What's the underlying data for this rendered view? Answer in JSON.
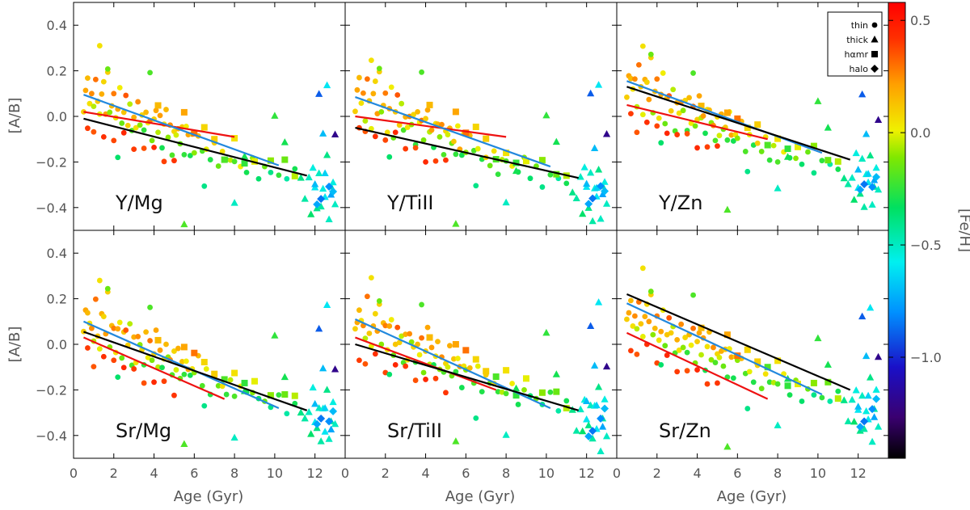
{
  "chart_data": {
    "type": "scatter",
    "x_label": "Age (Gyr)",
    "y_label": "[A/B]",
    "x_range": [
      0,
      13.5
    ],
    "y_range": [
      -0.5,
      0.5
    ],
    "x_ticks": [
      0,
      2,
      4,
      6,
      8,
      10,
      12
    ],
    "y_ticks": [
      -0.4,
      -0.2,
      0.0,
      0.2,
      0.4
    ],
    "x_tick_labels": [
      "0",
      "2",
      "4",
      "6",
      "8",
      "10",
      "12"
    ],
    "y_tick_labels": [
      "−0.4",
      "−0.2",
      "0.0",
      "0.2",
      "0.4"
    ],
    "colorbar": {
      "label": "[Fe/H]",
      "range": [
        -1.45,
        0.58
      ],
      "ticks": [
        0.5,
        0.0,
        -0.5,
        -1.0
      ],
      "tick_labels": [
        "0.5",
        "0.0",
        "−0.5",
        "−1.0"
      ]
    },
    "legend": {
      "position": "top-right of panel 3",
      "items": [
        {
          "label": "thin",
          "marker": "circle"
        },
        {
          "label": "thick",
          "marker": "triangle"
        },
        {
          "label": "hαmr",
          "marker": "square"
        },
        {
          "label": "halo",
          "marker": "diamond"
        }
      ]
    },
    "fit_line_colors": {
      "red": "#ee1111",
      "blue": "#2288dd",
      "black": "#000000"
    },
    "panels": [
      {
        "label": "Y/Mg",
        "fit_lines": [
          {
            "color": "red",
            "x": [
              0.5,
              8.0
            ],
            "y": [
              0.02,
              -0.09
            ]
          },
          {
            "color": "blue",
            "x": [
              0.5,
              10.2
            ],
            "y": [
              0.095,
              -0.215
            ]
          },
          {
            "color": "black",
            "x": [
              0.5,
              11.6
            ],
            "y": [
              -0.01,
              -0.26
            ]
          }
        ],
        "offset": 0.0
      },
      {
        "label": "Y/TiII",
        "fit_lines": [
          {
            "color": "red",
            "x": [
              0.5,
              8.0
            ],
            "y": [
              0.0,
              -0.09
            ]
          },
          {
            "color": "blue",
            "x": [
              0.5,
              10.2
            ],
            "y": [
              0.085,
              -0.22
            ]
          },
          {
            "color": "black",
            "x": [
              0.5,
              11.6
            ],
            "y": [
              -0.05,
              -0.27
            ]
          }
        ],
        "offset": -0.01
      },
      {
        "label": "Y/Zn",
        "fit_lines": [
          {
            "color": "red",
            "x": [
              0.5,
              7.5
            ],
            "y": [
              0.05,
              -0.1
            ]
          },
          {
            "color": "blue",
            "x": [
              0.5,
              10.2
            ],
            "y": [
              0.155,
              -0.16
            ]
          },
          {
            "color": "black",
            "x": [
              0.5,
              11.6
            ],
            "y": [
              0.13,
              -0.19
            ]
          }
        ],
        "offset": 0.04
      },
      {
        "label": "Sr/Mg",
        "fit_lines": [
          {
            "color": "red",
            "x": [
              0.5,
              7.5
            ],
            "y": [
              0.03,
              -0.24
            ]
          },
          {
            "color": "blue",
            "x": [
              0.5,
              10.2
            ],
            "y": [
              0.1,
              -0.28
            ]
          },
          {
            "color": "black",
            "x": [
              0.5,
              11.6
            ],
            "y": [
              0.055,
              -0.29
            ]
          }
        ],
        "offset": 0.0
      },
      {
        "label": "Sr/TiII",
        "fit_lines": [
          {
            "color": "red",
            "x": [
              0.5,
              7.5
            ],
            "y": [
              0.03,
              -0.2
            ]
          },
          {
            "color": "blue",
            "x": [
              0.5,
              10.2
            ],
            "y": [
              0.11,
              -0.28
            ]
          },
          {
            "color": "black",
            "x": [
              0.5,
              11.6
            ],
            "y": [
              0.0,
              -0.29
            ]
          }
        ],
        "offset": 0.0
      },
      {
        "label": "Sr/Zn",
        "fit_lines": [
          {
            "color": "red",
            "x": [
              0.5,
              7.5
            ],
            "y": [
              0.05,
              -0.24
            ]
          },
          {
            "color": "blue",
            "x": [
              0.5,
              10.2
            ],
            "y": [
              0.18,
              -0.22
            ]
          },
          {
            "color": "black",
            "x": [
              0.5,
              11.6
            ],
            "y": [
              0.22,
              -0.2
            ]
          }
        ],
        "offset": 0.03
      }
    ],
    "points": [
      [
        0.5,
        0.05,
        0.1,
        "c"
      ],
      [
        0.6,
        0.12,
        0.2,
        "c"
      ],
      [
        0.7,
        0.15,
        0.15,
        "c"
      ],
      [
        0.8,
        0.08,
        0.05,
        "c"
      ],
      [
        0.9,
        0.1,
        0.25,
        "c"
      ],
      [
        1.0,
        0.02,
        -0.05,
        "c"
      ],
      [
        1.1,
        0.18,
        0.3,
        "c"
      ],
      [
        1.2,
        0.06,
        0.12,
        "c"
      ],
      [
        1.3,
        -0.02,
        0.0,
        "c"
      ],
      [
        1.4,
        0.11,
        0.18,
        "c"
      ],
      [
        1.5,
        0.14,
        0.08,
        "c"
      ],
      [
        1.6,
        0.04,
        0.22,
        "c"
      ],
      [
        1.7,
        0.2,
        0.1,
        "c"
      ],
      [
        1.8,
        0.0,
        -0.1,
        "c"
      ],
      [
        1.9,
        0.07,
        0.15,
        "c"
      ],
      [
        2.0,
        0.1,
        0.28,
        "c"
      ],
      [
        2.1,
        -0.03,
        0.05,
        "c"
      ],
      [
        2.2,
        0.05,
        0.2,
        "c"
      ],
      [
        2.3,
        0.12,
        0.02,
        "c"
      ],
      [
        2.4,
        -0.06,
        -0.15,
        "c"
      ],
      [
        2.5,
        0.03,
        0.12,
        "c"
      ],
      [
        2.6,
        0.08,
        0.35,
        "c"
      ],
      [
        2.7,
        -0.01,
        0.1,
        "c"
      ],
      [
        2.8,
        0.06,
        -0.05,
        "c"
      ],
      [
        2.9,
        -0.08,
        -0.2,
        "c"
      ],
      [
        3.0,
        0.02,
        0.18,
        "c"
      ],
      [
        3.1,
        -0.05,
        0.05,
        "c"
      ],
      [
        3.2,
        0.04,
        0.25,
        "c"
      ],
      [
        3.3,
        -0.02,
        -0.1,
        "c"
      ],
      [
        3.4,
        0.0,
        0.08,
        "c"
      ],
      [
        3.5,
        -0.09,
        -0.25,
        "c"
      ],
      [
        3.6,
        0.03,
        0.15,
        "c"
      ],
      [
        3.7,
        -0.04,
        0.02,
        "c"
      ],
      [
        3.8,
        0.01,
        0.3,
        "c"
      ],
      [
        3.9,
        -0.1,
        -0.12,
        "c"
      ],
      [
        4.0,
        -0.03,
        0.1,
        "c"
      ],
      [
        4.1,
        0.05,
        0.2,
        "c"
      ],
      [
        4.2,
        -0.07,
        -0.05,
        "c"
      ],
      [
        4.3,
        -0.02,
        0.22,
        "c"
      ],
      [
        4.4,
        -0.12,
        -0.3,
        "c"
      ],
      [
        4.5,
        -0.04,
        0.05,
        "c"
      ],
      [
        4.6,
        0.0,
        0.15,
        "c"
      ],
      [
        4.7,
        -0.08,
        -0.1,
        "c"
      ],
      [
        4.8,
        -0.05,
        0.25,
        "c"
      ],
      [
        4.9,
        -0.14,
        -0.2,
        "c"
      ],
      [
        5.0,
        -0.06,
        0.08,
        "c"
      ],
      [
        5.1,
        -0.1,
        -0.02,
        "c"
      ],
      [
        5.2,
        -0.03,
        0.18,
        "c"
      ],
      [
        5.3,
        -0.12,
        -0.15,
        "c"
      ],
      [
        5.4,
        -0.07,
        0.12,
        "c"
      ],
      [
        5.5,
        -0.15,
        -0.25,
        "c"
      ],
      [
        5.6,
        -0.05,
        0.02,
        "c"
      ],
      [
        5.7,
        -0.11,
        0.2,
        "c"
      ],
      [
        5.8,
        -0.16,
        -0.3,
        "c"
      ],
      [
        5.9,
        -0.09,
        0.05,
        "c"
      ],
      [
        6.0,
        -0.13,
        -0.1,
        "c"
      ],
      [
        6.2,
        -0.08,
        0.15,
        "c"
      ],
      [
        6.4,
        -0.17,
        -0.2,
        "c"
      ],
      [
        6.6,
        -0.12,
        0.0,
        "c"
      ],
      [
        6.8,
        -0.19,
        -0.28,
        "c"
      ],
      [
        7.0,
        -0.14,
        0.1,
        "c"
      ],
      [
        7.2,
        -0.2,
        -0.15,
        "c"
      ],
      [
        7.4,
        -0.16,
        0.05,
        "c"
      ],
      [
        7.6,
        -0.22,
        -0.25,
        "c"
      ],
      [
        7.8,
        -0.18,
        -0.05,
        "c"
      ],
      [
        8.0,
        -0.21,
        -0.2,
        "c"
      ],
      [
        8.3,
        -0.19,
        0.02,
        "c"
      ],
      [
        8.6,
        -0.24,
        -0.3,
        "c"
      ],
      [
        8.9,
        -0.2,
        -0.1,
        "c"
      ],
      [
        9.2,
        -0.25,
        -0.35,
        "c"
      ],
      [
        9.5,
        -0.22,
        -0.15,
        "c"
      ],
      [
        9.8,
        -0.27,
        -0.4,
        "c"
      ],
      [
        10.2,
        -0.24,
        -0.25,
        "c"
      ],
      [
        10.6,
        -0.28,
        -0.45,
        "c"
      ],
      [
        11.0,
        -0.26,
        -0.3,
        "c"
      ],
      [
        0.7,
        -0.04,
        0.4,
        "c"
      ],
      [
        1.0,
        -0.08,
        0.35,
        "c"
      ],
      [
        1.5,
        -0.06,
        0.42,
        "c"
      ],
      [
        2.0,
        -0.1,
        0.38,
        "c"
      ],
      [
        2.5,
        -0.09,
        0.45,
        "c"
      ],
      [
        3.0,
        -0.12,
        0.4,
        "c"
      ],
      [
        3.5,
        -0.14,
        0.36,
        "c"
      ],
      [
        4.0,
        -0.16,
        0.44,
        "c"
      ],
      [
        4.5,
        -0.18,
        0.39,
        "c"
      ],
      [
        5.0,
        -0.2,
        0.41,
        "c"
      ],
      [
        1.3,
        0.28,
        0.05,
        "c"
      ],
      [
        1.7,
        0.22,
        -0.15,
        "c"
      ],
      [
        3.8,
        0.18,
        -0.2,
        "c"
      ],
      [
        2.2,
        -0.15,
        -0.35,
        "c"
      ],
      [
        6.5,
        -0.3,
        -0.4,
        "c"
      ],
      [
        5.5,
        0.0,
        0.2,
        "s"
      ],
      [
        6.0,
        -0.05,
        0.3,
        "s"
      ],
      [
        7.0,
        -0.1,
        0.1,
        "s"
      ],
      [
        8.0,
        -0.12,
        0.05,
        "s"
      ],
      [
        9.0,
        -0.18,
        0.0,
        "s"
      ],
      [
        9.8,
        -0.2,
        -0.1,
        "s"
      ],
      [
        10.5,
        -0.22,
        -0.15,
        "s"
      ],
      [
        11.0,
        -0.25,
        -0.05,
        "s"
      ],
      [
        6.5,
        -0.06,
        0.08,
        "s"
      ],
      [
        7.5,
        -0.16,
        -0.2,
        "s"
      ],
      [
        8.5,
        -0.2,
        -0.25,
        "s"
      ],
      [
        4.2,
        0.03,
        0.15,
        "s"
      ],
      [
        5.5,
        -0.45,
        -0.2,
        "t"
      ],
      [
        8.0,
        -0.38,
        -0.5,
        "t"
      ],
      [
        8.5,
        -0.2,
        -0.3,
        "t"
      ],
      [
        10.0,
        0.02,
        -0.25,
        "t"
      ],
      [
        10.5,
        -0.12,
        -0.3,
        "t"
      ],
      [
        11.3,
        -0.3,
        -0.4,
        "t"
      ],
      [
        11.5,
        -0.35,
        -0.45,
        "t"
      ],
      [
        11.7,
        -0.28,
        -0.5,
        "t"
      ],
      [
        11.8,
        -0.4,
        -0.35,
        "t"
      ],
      [
        11.9,
        -0.22,
        -0.55,
        "t"
      ],
      [
        12.0,
        -0.33,
        -0.6,
        "t"
      ],
      [
        12.1,
        -0.38,
        -0.4,
        "t"
      ],
      [
        12.2,
        -0.25,
        -0.5,
        "t"
      ],
      [
        12.3,
        -0.42,
        -0.45,
        "t"
      ],
      [
        12.4,
        -0.3,
        -0.55,
        "t"
      ],
      [
        12.5,
        -0.36,
        -0.6,
        "t"
      ],
      [
        12.6,
        -0.2,
        -0.4,
        "t"
      ],
      [
        12.7,
        -0.44,
        -0.5,
        "t"
      ],
      [
        12.8,
        -0.32,
        -0.45,
        "t"
      ],
      [
        12.9,
        -0.26,
        -0.55,
        "t"
      ],
      [
        13.0,
        -0.38,
        -0.5,
        "t"
      ],
      [
        12.2,
        0.08,
        -0.9,
        "t"
      ],
      [
        12.6,
        0.16,
        -0.6,
        "t"
      ],
      [
        13.0,
        -0.08,
        -1.2,
        "t"
      ],
      [
        12.4,
        -0.1,
        -0.7,
        "t"
      ],
      [
        12.0,
        -0.28,
        -0.7,
        "t"
      ],
      [
        12.8,
        -0.35,
        -0.75,
        "t"
      ],
      [
        12.5,
        -0.28,
        -0.65,
        "t"
      ],
      [
        12.3,
        -0.35,
        -0.85,
        "d"
      ],
      [
        12.7,
        -0.32,
        -0.8,
        "d"
      ],
      [
        12.9,
        -0.3,
        -0.7,
        "d"
      ],
      [
        12.1,
        -0.38,
        -0.75,
        "d"
      ]
    ]
  }
}
